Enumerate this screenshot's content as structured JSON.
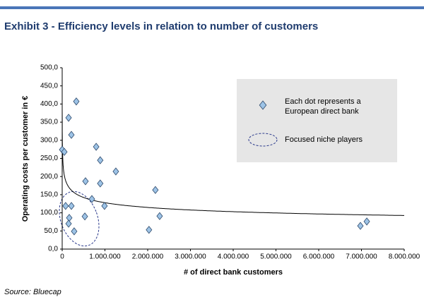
{
  "chart_data": {
    "type": "scatter",
    "title": "Exhibit 3 - Efficiency levels in relation to number of customers",
    "x_label": "# of direct bank customers",
    "y_label": "Operating costs per customer in €",
    "source": "Source: Bluecap",
    "niche_label": "Focused niche players",
    "trendline": true,
    "xlim": [
      0,
      8000000
    ],
    "ylim": [
      0,
      500
    ],
    "xticks": [
      0,
      {
        "value": 1000000,
        "label": "1.000.000"
      },
      {
        "value": 2000000,
        "label": "2.000.000"
      },
      {
        "value": 3000000,
        "label": "3.000.000"
      },
      {
        "value": 4000000,
        "label": "4.000.000"
      },
      {
        "value": 5000000,
        "label": "5.000.000"
      },
      {
        "value": 6000000,
        "label": "6.000.000"
      },
      {
        "value": 7000000,
        "label": "7.000.000"
      },
      {
        "value": 8000000,
        "label": "8.000.000"
      }
    ],
    "yticks": [
      {
        "value": 0,
        "label": "0,0"
      },
      {
        "value": 50,
        "label": "50,0"
      },
      {
        "value": 100,
        "label": "100,0"
      },
      {
        "value": 150,
        "label": "150,0"
      },
      {
        "value": 200,
        "label": "200,0"
      },
      {
        "value": 250,
        "label": "250,0"
      },
      {
        "value": 300,
        "label": "300,0"
      },
      {
        "value": 350,
        "label": "350,0"
      },
      {
        "value": 400,
        "label": "400,0"
      },
      {
        "value": 450,
        "label": "450,0"
      },
      {
        "value": 500,
        "label": "500,0"
      }
    ],
    "series": [
      {
        "name": "Each dot represents a European direct bank",
        "color": "#9dc3e6",
        "x": [
          0,
          50000,
          330000,
          150000,
          215000,
          80000,
          215000,
          165000,
          150000,
          280000,
          530000,
          545000,
          695000,
          795000,
          890000,
          890000,
          990000,
          1255000,
          2030000,
          2180000,
          2280000,
          6975000,
          7125000
        ],
        "values": [
          274,
          268,
          407,
          362,
          315,
          119,
          119,
          86,
          70,
          49,
          90,
          187,
          138,
          282,
          245,
          181,
          119,
          214,
          53,
          163,
          91,
          64,
          76
        ]
      }
    ]
  }
}
